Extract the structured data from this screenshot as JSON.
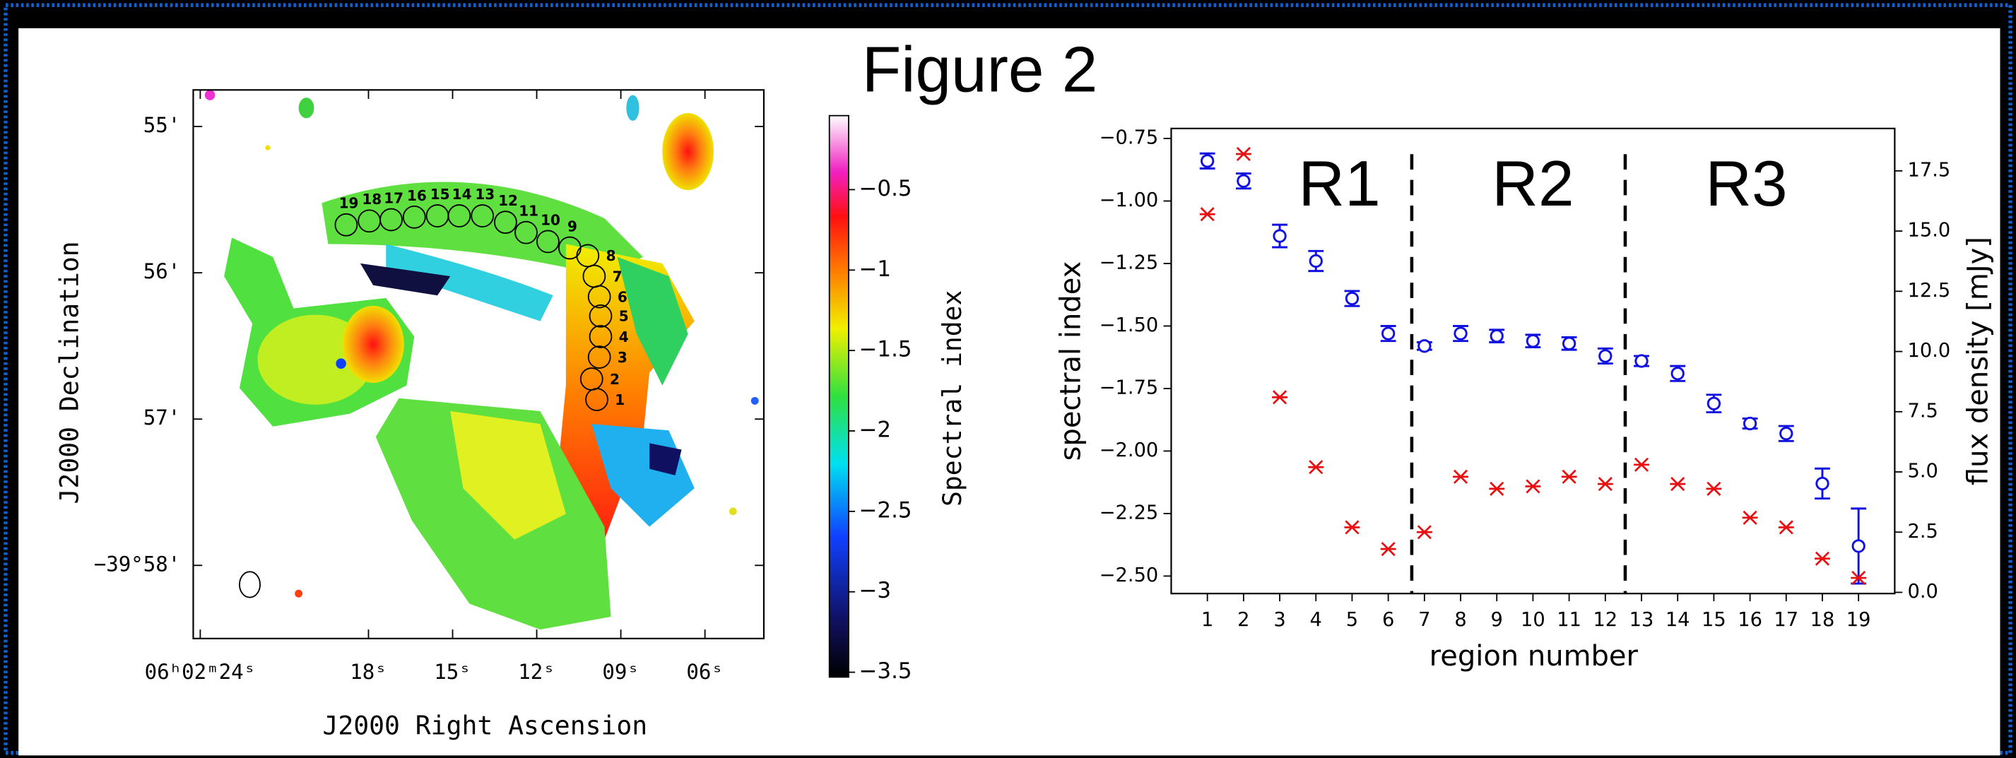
{
  "title": "Figure 2",
  "map": {
    "xlabel": "J2000 Right Ascension",
    "ylabel": "J2000 Declination",
    "xlim": [
      24.25,
      3.9
    ],
    "xticks": [
      {
        "value": 24,
        "label": "06ʰ02ᵐ24ˢ"
      },
      {
        "value": 18,
        "label": "18ˢ"
      },
      {
        "value": 15,
        "label": "15ˢ"
      },
      {
        "value": 12,
        "label": "12ˢ"
      },
      {
        "value": 9,
        "label": "09ˢ"
      },
      {
        "value": 6,
        "label": "06ˢ"
      }
    ],
    "ylim": [
      54.75,
      58.5
    ],
    "yticks": [
      {
        "value": 55,
        "label": "55'"
      },
      {
        "value": 56,
        "label": "56'"
      },
      {
        "value": 57,
        "label": "57'"
      },
      {
        "value": 58,
        "label": "−39°58'"
      }
    ],
    "regions": [
      "1",
      "2",
      "3",
      "4",
      "5",
      "6",
      "7",
      "8",
      "9",
      "10",
      "11",
      "12",
      "13",
      "14",
      "15",
      "16",
      "17",
      "18",
      "19"
    ],
    "colorbar": {
      "label": "Spectral index",
      "lim": [
        -3.53,
        -0.04
      ],
      "ticks": [
        {
          "value": -0.5,
          "label": "−0.5"
        },
        {
          "value": -1,
          "label": "−1"
        },
        {
          "value": -1.5,
          "label": "−1.5"
        },
        {
          "value": -2,
          "label": "−2"
        },
        {
          "value": -2.5,
          "label": "−2.5"
        },
        {
          "value": -3,
          "label": "−3"
        },
        {
          "value": -3.5,
          "label": "−3.5"
        }
      ]
    }
  },
  "chart_data": {
    "type": "scatter",
    "xlabel": "region number",
    "ylabel": "spectral index",
    "y2label": "flux density [mJy]",
    "x": [
      1,
      2,
      3,
      4,
      5,
      6,
      7,
      8,
      9,
      10,
      11,
      12,
      13,
      14,
      15,
      16,
      17,
      18,
      19
    ],
    "xlim": [
      0,
      20
    ],
    "xticks": [
      1,
      2,
      3,
      4,
      5,
      6,
      7,
      8,
      9,
      10,
      11,
      12,
      13,
      14,
      15,
      16,
      17,
      18,
      19
    ],
    "ylim": [
      -2.57,
      -0.71
    ],
    "yticks": [
      {
        "value": -0.75,
        "label": "−0.75"
      },
      {
        "value": -1.0,
        "label": "−1.00"
      },
      {
        "value": -1.25,
        "label": "−1.25"
      },
      {
        "value": -1.5,
        "label": "−1.50"
      },
      {
        "value": -1.75,
        "label": "−1.75"
      },
      {
        "value": -2.0,
        "label": "−2.00"
      },
      {
        "value": -2.25,
        "label": "−2.25"
      },
      {
        "value": -2.5,
        "label": "−2.50"
      }
    ],
    "y2lim": [
      -0.05,
      19.26
    ],
    "y2ticks": [
      {
        "value": 0,
        "label": "0.0"
      },
      2.5,
      {
        "value": 5,
        "label": "5.0"
      },
      7.5,
      {
        "value": 10,
        "label": "10.0"
      },
      12.5,
      {
        "value": 15,
        "label": "15.0"
      },
      17.5
    ],
    "series": [
      {
        "color": "#1010e0",
        "marker": "circle",
        "values": [
          -0.84,
          -0.92,
          -1.14,
          -1.24,
          -1.39,
          -1.53,
          -1.58,
          -1.53,
          -1.54,
          -1.56,
          -1.57,
          -1.62,
          -1.64,
          -1.69,
          -1.81,
          -1.89,
          -1.93,
          -2.13,
          -2.38
        ],
        "errors": [
          0.03,
          0.03,
          0.045,
          0.04,
          0.03,
          0.03,
          0.015,
          0.03,
          0.025,
          0.025,
          0.025,
          0.03,
          0.02,
          0.03,
          0.035,
          0.02,
          0.03,
          0.06,
          0.15
        ]
      },
      {
        "color": "#e81010",
        "marker": "x",
        "axis": "y2",
        "values": [
          15.7,
          18.2,
          8.1,
          5.2,
          2.7,
          1.8,
          2.5,
          4.8,
          4.3,
          4.4,
          4.8,
          4.5,
          5.3,
          4.5,
          4.3,
          3.1,
          2.7,
          1.4,
          0.6
        ]
      }
    ],
    "vlines": [
      6.65,
      12.55
    ],
    "annotations": [
      {
        "text": "R1",
        "x": 4.65,
        "y": -0.95
      },
      {
        "text": "R2",
        "x": 10.0,
        "y": -0.95
      },
      {
        "text": "R3",
        "x": 15.9,
        "y": -0.95
      }
    ]
  }
}
